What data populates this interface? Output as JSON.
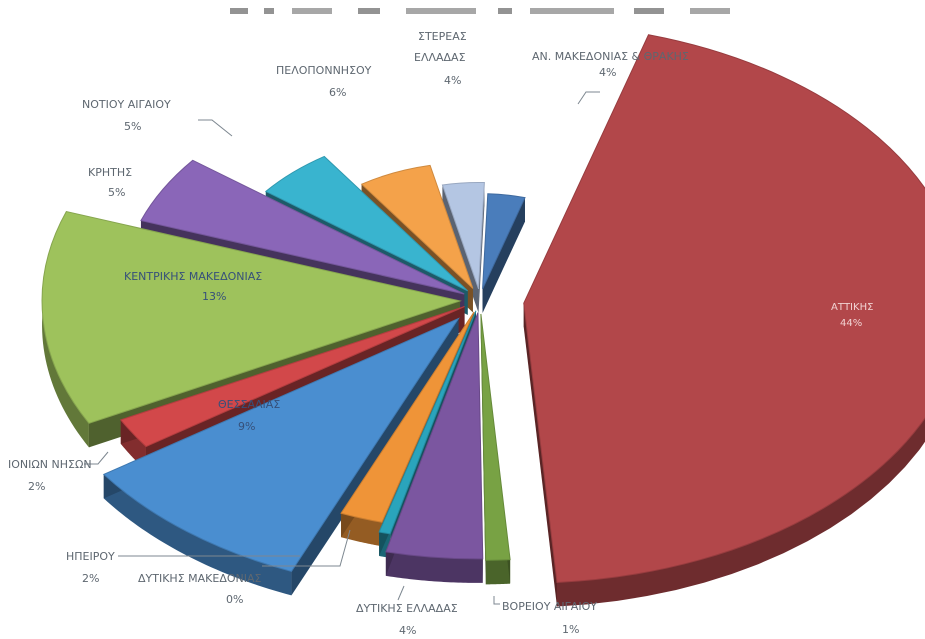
{
  "chart_data": {
    "type": "pie",
    "title": "",
    "slices": [
      {
        "label": "ΑΝ. ΜΑΚΕΔΟΝΙΑΣ & ΘΡΑΚΗΣ",
        "value_label": "4%",
        "value": 4,
        "color": "#4a7dbb"
      },
      {
        "label": "ΑΤΤΙΚΗΣ",
        "value_label": "44%",
        "value": 44,
        "color": "#b2474a"
      },
      {
        "label": "ΒΟΡΕΙΟΥ ΑΙΓΑΙΟΥ",
        "value_label": "1%",
        "value": 1,
        "color": "#78a244"
      },
      {
        "label": "ΔΥΤΙΚΗΣ ΕΛΛΑΔΑΣ",
        "value_label": "4%",
        "value": 4,
        "color": "#7b56a0"
      },
      {
        "label": "ΔΥΤΙΚΗΣ ΜΑΚΕΔΟΝΙΑΣ",
        "value_label": "0%",
        "value": 0.5,
        "color": "#2aa4bc"
      },
      {
        "label": "ΗΠΕΙΡΟΥ",
        "value_label": "2%",
        "value": 2,
        "color": "#ef9438"
      },
      {
        "label": "ΘΕΣΣΑΛΙΑΣ",
        "value_label": "9%",
        "value": 9,
        "color": "#4a8ed0"
      },
      {
        "label": "ΙΟΝΙΩΝ ΝΗΣΩΝ",
        "value_label": "2%",
        "value": 2,
        "color": "#d2484a"
      },
      {
        "label": "ΚΕΝΤΡΙΚΗΣ ΜΑΚΕΔΟΝΙΑΣ",
        "value_label": "13%",
        "value": 13,
        "color": "#9ec25c"
      },
      {
        "label": "ΚΡΗΤΗΣ",
        "value_label": "5%",
        "value": 5,
        "color": "#8a66b8"
      },
      {
        "label": "ΝΟΤΙΟΥ ΑΙΓΑΙΟΥ",
        "value_label": "5%",
        "value": 5,
        "color": "#39b4cf"
      },
      {
        "label": "ΠΕΛΟΠΟΝΝΗΣΟΥ",
        "value_label": "6%",
        "value": 6,
        "color": "#f4a24a"
      },
      {
        "label": "ΣΤΕΡΕΑΣ ΕΛΛΑΔΑΣ",
        "value_label": "4%",
        "value": 4,
        "color": "#b4c6e3"
      }
    ],
    "legend": "none",
    "style": "3d exploded pie"
  }
}
